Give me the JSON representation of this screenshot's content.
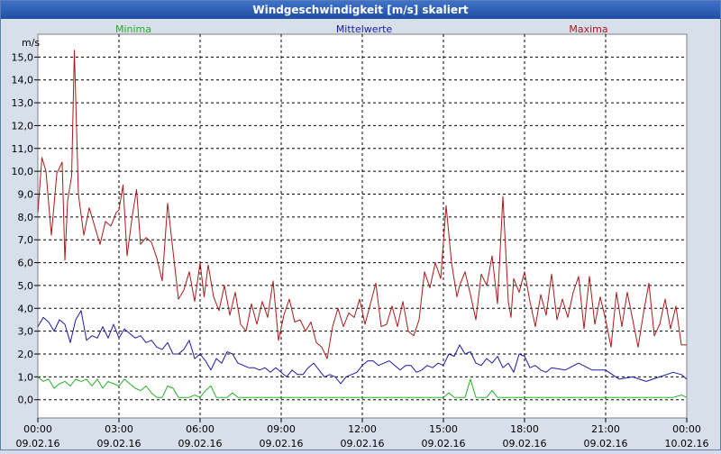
{
  "window": {
    "title": "Windgeschwindigkeit [m/s] skaliert"
  },
  "chart_data": {
    "type": "line",
    "title": "Windgeschwindigkeit [m/s] skaliert",
    "ylabel": "m/s",
    "ylim": [
      -0.8,
      16.0
    ],
    "yticks": [
      0.0,
      1.0,
      2.0,
      3.0,
      4.0,
      5.0,
      6.0,
      7.0,
      8.0,
      9.0,
      10.0,
      11.0,
      12.0,
      13.0,
      14.0,
      15.0
    ],
    "ytick_labels": [
      "0,0",
      "1,0",
      "2,0",
      "3,0",
      "4,0",
      "5,0",
      "6,0",
      "7,0",
      "8,0",
      "9,0",
      "10,0",
      "11,0",
      "12,0",
      "13,0",
      "14,0",
      "15,0"
    ],
    "xlim": [
      0,
      24
    ],
    "xticks": [
      {
        "x": 0,
        "time": "00:00",
        "date": "09.02.16"
      },
      {
        "x": 3,
        "time": "03:00",
        "date": "09.02.16"
      },
      {
        "x": 6,
        "time": "06:00",
        "date": "09.02.16"
      },
      {
        "x": 9,
        "time": "09:00",
        "date": "09.02.16"
      },
      {
        "x": 12,
        "time": "12:00",
        "date": "09.02.16"
      },
      {
        "x": 15,
        "time": "15:00",
        "date": "09.02.16"
      },
      {
        "x": 18,
        "time": "18:00",
        "date": "09.02.16"
      },
      {
        "x": 21,
        "time": "21:00",
        "date": "09.02.16"
      },
      {
        "x": 24,
        "time": "00:00",
        "date": "10.02.16"
      }
    ],
    "grid": true,
    "legend_position": "top",
    "series": [
      {
        "name": "Minima",
        "color": "#22b022",
        "x": [
          0.0,
          0.2,
          0.4,
          0.6,
          0.8,
          1.0,
          1.2,
          1.4,
          1.6,
          1.8,
          2.0,
          2.2,
          2.4,
          2.6,
          2.8,
          3.0,
          3.2,
          3.4,
          3.6,
          3.8,
          4.0,
          4.2,
          4.4,
          4.6,
          4.8,
          5.0,
          5.2,
          5.4,
          5.6,
          5.8,
          6.0,
          6.2,
          6.4,
          6.6,
          6.8,
          7.0,
          7.2,
          7.4,
          7.6,
          7.8,
          8.0,
          8.5,
          9.0,
          9.5,
          10.0,
          10.5,
          11.0,
          11.5,
          12.0,
          12.5,
          13.0,
          13.5,
          14.0,
          14.5,
          14.8,
          15.0,
          15.2,
          15.4,
          15.6,
          15.8,
          16.0,
          16.2,
          16.4,
          16.6,
          16.8,
          17.0,
          17.2,
          17.4,
          17.6,
          17.8,
          18.0,
          18.5,
          19.0,
          19.5,
          20.0,
          20.5,
          21.0,
          21.5,
          22.0,
          22.5,
          23.0,
          23.5,
          23.8,
          24.0
        ],
        "values": [
          1.0,
          0.8,
          0.9,
          0.5,
          0.7,
          0.8,
          0.6,
          0.9,
          0.8,
          0.9,
          0.6,
          0.9,
          0.5,
          0.8,
          0.7,
          0.6,
          0.9,
          0.7,
          0.5,
          0.4,
          0.6,
          0.3,
          0.1,
          0.1,
          0.6,
          0.5,
          0.1,
          0.1,
          0.1,
          0.2,
          0.1,
          0.4,
          0.6,
          0.1,
          0.1,
          0.1,
          0.3,
          0.1,
          0.1,
          0.1,
          0.1,
          0.1,
          0.1,
          0.1,
          0.1,
          0.1,
          0.1,
          0.1,
          0.1,
          0.1,
          0.1,
          0.1,
          0.1,
          0.1,
          0.1,
          0.1,
          0.3,
          0.1,
          0.1,
          0.1,
          0.9,
          0.1,
          0.1,
          0.1,
          0.4,
          0.1,
          0.1,
          0.1,
          0.1,
          0.1,
          0.1,
          0.1,
          0.1,
          0.1,
          0.1,
          0.1,
          0.1,
          0.1,
          0.1,
          0.1,
          0.1,
          0.1,
          0.2,
          0.1
        ]
      },
      {
        "name": "Mittelwerte",
        "color": "#1a1aa8",
        "x": [
          0.0,
          0.2,
          0.4,
          0.6,
          0.8,
          1.0,
          1.2,
          1.4,
          1.6,
          1.8,
          2.0,
          2.2,
          2.4,
          2.6,
          2.8,
          3.0,
          3.2,
          3.4,
          3.6,
          3.8,
          4.0,
          4.2,
          4.4,
          4.6,
          4.8,
          5.0,
          5.2,
          5.4,
          5.6,
          5.8,
          6.0,
          6.2,
          6.4,
          6.6,
          6.8,
          7.0,
          7.2,
          7.4,
          7.6,
          7.8,
          8.0,
          8.2,
          8.4,
          8.6,
          8.8,
          9.0,
          9.2,
          9.4,
          9.6,
          9.8,
          10.0,
          10.2,
          10.4,
          10.6,
          10.8,
          11.0,
          11.2,
          11.4,
          11.6,
          11.8,
          12.0,
          12.2,
          12.4,
          12.6,
          12.8,
          13.0,
          13.2,
          13.4,
          13.6,
          13.8,
          14.0,
          14.2,
          14.4,
          14.6,
          14.8,
          15.0,
          15.2,
          15.4,
          15.6,
          15.8,
          16.0,
          16.2,
          16.4,
          16.6,
          16.8,
          17.0,
          17.2,
          17.4,
          17.6,
          17.8,
          18.0,
          18.2,
          18.4,
          18.6,
          18.8,
          19.0,
          19.5,
          20.0,
          20.5,
          21.0,
          21.5,
          22.0,
          22.5,
          23.0,
          23.5,
          23.8,
          24.0
        ],
        "values": [
          3.2,
          3.6,
          3.4,
          3.0,
          3.5,
          3.3,
          2.5,
          3.5,
          3.9,
          2.6,
          2.8,
          2.7,
          3.2,
          2.7,
          3.3,
          2.7,
          3.1,
          2.9,
          2.7,
          2.8,
          2.5,
          2.6,
          2.3,
          2.2,
          2.5,
          2.0,
          2.0,
          2.2,
          2.6,
          1.8,
          2.0,
          1.7,
          1.3,
          1.8,
          1.6,
          2.1,
          2.0,
          1.6,
          1.5,
          1.4,
          1.4,
          1.3,
          1.4,
          1.2,
          1.4,
          1.2,
          1.0,
          1.3,
          1.1,
          1.1,
          1.4,
          1.6,
          1.3,
          1.0,
          1.1,
          1.0,
          0.7,
          1.0,
          1.1,
          1.2,
          1.5,
          1.7,
          1.7,
          1.5,
          1.6,
          1.7,
          1.5,
          1.3,
          1.5,
          1.5,
          1.2,
          1.3,
          1.5,
          1.4,
          1.6,
          1.5,
          2.0,
          1.9,
          2.4,
          2.0,
          2.1,
          1.6,
          1.5,
          1.8,
          1.6,
          1.9,
          1.4,
          1.6,
          1.2,
          2.0,
          1.9,
          1.4,
          1.5,
          1.3,
          1.2,
          1.4,
          1.3,
          1.6,
          1.3,
          1.3,
          0.9,
          1.0,
          0.8,
          1.0,
          1.2,
          1.1,
          0.9
        ]
      },
      {
        "name": "Maxima",
        "color": "#aa1a1a",
        "x": [
          0.0,
          0.15,
          0.3,
          0.5,
          0.7,
          0.9,
          1.0,
          1.1,
          1.25,
          1.35,
          1.5,
          1.7,
          1.9,
          2.1,
          2.3,
          2.5,
          2.7,
          2.9,
          3.0,
          3.15,
          3.3,
          3.5,
          3.65,
          3.8,
          4.0,
          4.2,
          4.4,
          4.6,
          4.8,
          5.0,
          5.2,
          5.4,
          5.6,
          5.8,
          6.0,
          6.15,
          6.3,
          6.5,
          6.7,
          6.9,
          7.1,
          7.3,
          7.5,
          7.7,
          7.9,
          8.1,
          8.3,
          8.5,
          8.7,
          8.9,
          9.1,
          9.3,
          9.5,
          9.7,
          9.9,
          10.1,
          10.3,
          10.5,
          10.7,
          10.9,
          11.1,
          11.3,
          11.5,
          11.7,
          11.9,
          12.1,
          12.3,
          12.5,
          12.7,
          12.9,
          13.1,
          13.3,
          13.5,
          13.7,
          13.9,
          14.1,
          14.3,
          14.5,
          14.7,
          14.9,
          15.1,
          15.3,
          15.5,
          15.6,
          15.8,
          16.0,
          16.2,
          16.4,
          16.6,
          16.8,
          17.0,
          17.2,
          17.4,
          17.5,
          17.6,
          17.8,
          18.0,
          18.2,
          18.4,
          18.6,
          18.8,
          19.0,
          19.2,
          19.4,
          19.6,
          19.8,
          20.0,
          20.2,
          20.4,
          20.6,
          20.8,
          21.0,
          21.2,
          21.4,
          21.6,
          21.8,
          22.0,
          22.2,
          22.4,
          22.6,
          22.8,
          23.0,
          23.2,
          23.4,
          23.6,
          23.8,
          24.0
        ],
        "values": [
          8.2,
          10.6,
          10.0,
          7.2,
          9.9,
          10.4,
          6.1,
          8.7,
          9.8,
          15.3,
          9.0,
          7.2,
          8.4,
          7.6,
          6.8,
          7.8,
          7.6,
          8.2,
          8.3,
          9.4,
          6.3,
          8.1,
          9.2,
          6.8,
          7.1,
          6.9,
          6.2,
          5.2,
          8.6,
          6.5,
          4.4,
          4.8,
          5.6,
          4.3,
          6.0,
          4.5,
          5.9,
          4.5,
          3.9,
          5.0,
          3.7,
          4.7,
          3.3,
          3.0,
          4.2,
          3.3,
          4.3,
          3.6,
          5.2,
          2.6,
          3.7,
          4.4,
          3.4,
          3.5,
          3.0,
          3.4,
          2.5,
          2.3,
          1.8,
          3.2,
          4.0,
          3.2,
          3.8,
          3.6,
          4.4,
          3.3,
          4.2,
          5.1,
          3.2,
          3.3,
          4.1,
          3.2,
          4.3,
          3.0,
          2.8,
          3.5,
          5.6,
          4.9,
          6.0,
          5.3,
          8.5,
          6.0,
          4.5,
          5.0,
          5.6,
          4.6,
          3.5,
          5.5,
          5.0,
          6.3,
          4.2,
          8.9,
          4.3,
          3.6,
          5.3,
          4.7,
          5.6,
          4.3,
          3.2,
          4.6,
          3.7,
          5.5,
          3.5,
          4.4,
          3.6,
          4.7,
          5.4,
          3.1,
          5.4,
          3.3,
          4.5,
          3.5,
          2.3,
          4.7,
          3.2,
          4.7,
          3.5,
          2.3,
          3.8,
          5.1,
          2.8,
          3.3,
          4.4,
          3.1,
          4.1,
          2.4,
          2.4
        ]
      }
    ]
  }
}
